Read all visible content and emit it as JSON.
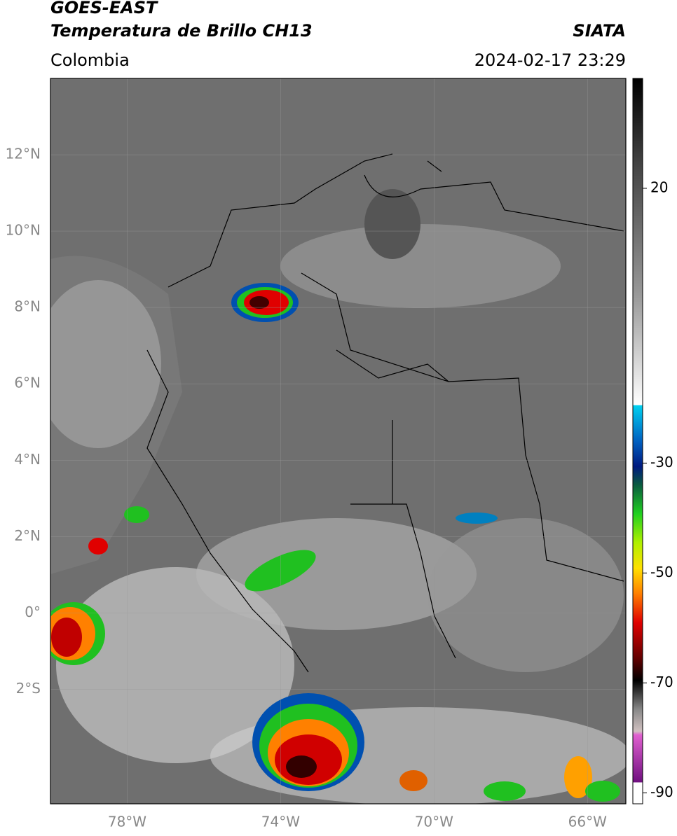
{
  "header": {
    "satellite": "GOES-EAST",
    "product": "Temperatura de Brillo CH13",
    "source": "SIATA",
    "region": "Colombia",
    "datetime": "2024-02-17 23:29"
  },
  "map": {
    "latlim": [
      -5,
      14
    ],
    "lonlim": [
      -80,
      -65
    ],
    "lat_ticks": [
      {
        "value": 12,
        "label": "12°N"
      },
      {
        "value": 10,
        "label": "10°N"
      },
      {
        "value": 8,
        "label": "8°N"
      },
      {
        "value": 6,
        "label": "6°N"
      },
      {
        "value": 4,
        "label": "4°N"
      },
      {
        "value": 2,
        "label": "2°N"
      },
      {
        "value": 0,
        "label": "0°"
      },
      {
        "value": -2,
        "label": "2°S"
      }
    ],
    "lon_ticks": [
      {
        "value": -78,
        "label": "78°W"
      },
      {
        "value": -74,
        "label": "74°W"
      },
      {
        "value": -70,
        "label": "70°W"
      },
      {
        "value": -66,
        "label": "66°W"
      }
    ],
    "grid": true
  },
  "colorbar": {
    "range": [
      40,
      -92
    ],
    "ticks": [
      20,
      -30,
      -50,
      -70,
      -90
    ]
  }
}
